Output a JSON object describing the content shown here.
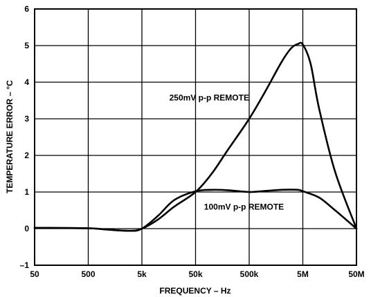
{
  "chart_data": {
    "type": "line",
    "xlabel": "FREQUENCY – Hz",
    "ylabel": "TEMPERATURE ERROR – °C",
    "x_scale": "log",
    "xlim": [
      50,
      50000000
    ],
    "ylim": [
      -1,
      6
    ],
    "x_ticks": [
      {
        "value": 50,
        "label": "50"
      },
      {
        "value": 500,
        "label": "500"
      },
      {
        "value": 5000,
        "label": "5k"
      },
      {
        "value": 50000,
        "label": "50k"
      },
      {
        "value": 500000,
        "label": "500k"
      },
      {
        "value": 5000000,
        "label": "5M"
      },
      {
        "value": 50000000,
        "label": "50M"
      }
    ],
    "y_ticks": [
      {
        "value": -1,
        "label": "–1"
      },
      {
        "value": 0,
        "label": "0"
      },
      {
        "value": 1,
        "label": "1"
      },
      {
        "value": 2,
        "label": "2"
      },
      {
        "value": 3,
        "label": "3"
      },
      {
        "value": 4,
        "label": "4"
      },
      {
        "value": 5,
        "label": "5"
      },
      {
        "value": 6,
        "label": "6"
      }
    ],
    "grid": true,
    "series": [
      {
        "name": "250mV p-p REMOTE",
        "x": [
          50,
          500,
          1000,
          3000,
          5000,
          10000,
          20000,
          50000,
          100000,
          200000,
          500000,
          1000000,
          2000000,
          3000000,
          4000000,
          5000000,
          7000000,
          10000000,
          20000000,
          50000000
        ],
        "y": [
          0.02,
          0.01,
          -0.02,
          -0.06,
          0.0,
          0.25,
          0.6,
          1.0,
          1.5,
          2.15,
          3.0,
          3.75,
          4.55,
          4.92,
          5.04,
          5.03,
          4.5,
          3.3,
          1.55,
          0.0
        ]
      },
      {
        "name": "100mV p-p REMOTE",
        "x": [
          50,
          500,
          1000,
          3000,
          5000,
          10000,
          20000,
          50000,
          100000,
          200000,
          500000,
          1000000,
          2000000,
          4000000,
          5000000,
          10000000,
          20000000,
          50000000
        ],
        "y": [
          0.02,
          0.01,
          -0.02,
          -0.06,
          0.0,
          0.35,
          0.78,
          1.02,
          1.06,
          1.05,
          1.0,
          1.03,
          1.06,
          1.06,
          1.02,
          0.85,
          0.5,
          0.0
        ]
      }
    ],
    "annotations": [
      {
        "text": "250mV p-p REMOTE",
        "x": 90000,
        "y": 3.5
      },
      {
        "text": "100mV p-p REMOTE",
        "x": 400000,
        "y": 0.52
      }
    ]
  }
}
